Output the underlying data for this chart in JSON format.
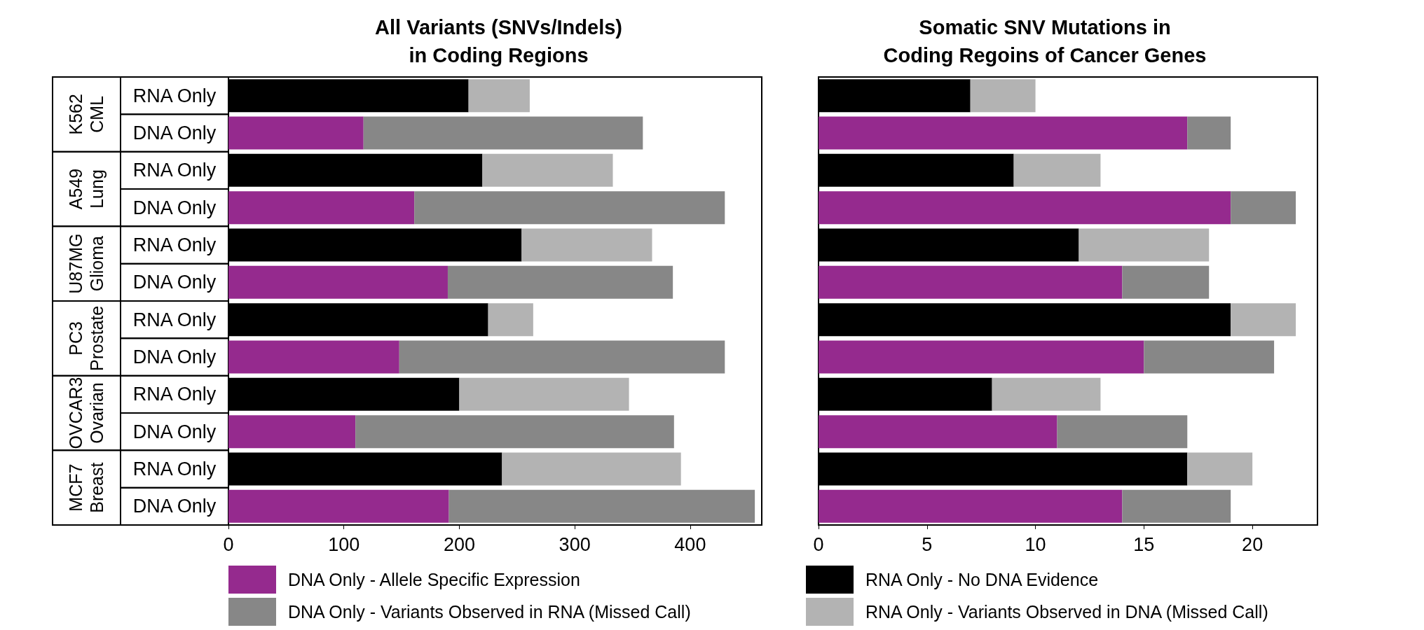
{
  "chart_data": [
    {
      "type": "bar",
      "title": "All Variants (SNVs/Indels)\nin Coding Regions",
      "orientation": "horizontal",
      "stacked": true,
      "categories": [
        "RNA Only",
        "DNA Only",
        "RNA Only",
        "DNA Only",
        "RNA Only",
        "DNA Only",
        "RNA Only",
        "DNA Only",
        "RNA Only",
        "DNA Only",
        "RNA Only",
        "DNA Only"
      ],
      "annotations": [
        "K562\nCML",
        "A549\nLung",
        "U87MG\nGlioma",
        "PC3\nProstate",
        "OVCAR3\nOvarian",
        "MCF7\nBreast"
      ],
      "series": [
        {
          "name": "DNA Only - Allele Specific Expression",
          "color": "#952a8e",
          "values": [
            null,
            117,
            null,
            161,
            null,
            190,
            null,
            148,
            null,
            110,
            null,
            191
          ]
        },
        {
          "name": "DNA Only - Variants Observed in RNA (Missed Call)",
          "color": "#878787",
          "values": [
            null,
            242,
            null,
            269,
            null,
            195,
            null,
            282,
            null,
            276,
            null,
            265
          ]
        },
        {
          "color": "#000000",
          "values": [
            208,
            null,
            220,
            null,
            254,
            null,
            225,
            null,
            200,
            null,
            237,
            null
          ]
        },
        {
          "color": "#b3b3b3",
          "values": [
            53,
            null,
            113,
            null,
            113,
            null,
            39,
            null,
            147,
            null,
            155,
            null
          ]
        }
      ],
      "xlim": [
        0,
        462
      ],
      "xticks": [
        0,
        100,
        200,
        300,
        400
      ],
      "grid": false,
      "legend": "bottom"
    },
    {
      "type": "bar",
      "title": "Somatic SNV Mutations in\nCoding Regoins of Cancer Genes",
      "orientation": "horizontal",
      "stacked": true,
      "categories": [
        null,
        null,
        null,
        null,
        null,
        null,
        null,
        null,
        null,
        null,
        null,
        null
      ],
      "series": [
        {
          "color": "#952a8e",
          "values": [
            null,
            17,
            null,
            19,
            null,
            14,
            null,
            15,
            null,
            11,
            null,
            14
          ]
        },
        {
          "color": "#878787",
          "values": [
            null,
            2,
            null,
            3,
            null,
            4,
            null,
            6,
            null,
            6,
            null,
            5
          ]
        },
        {
          "name": "RNA Only - No DNA Evidence",
          "color": "#000000",
          "values": [
            7,
            null,
            9,
            null,
            12,
            null,
            19,
            null,
            8,
            null,
            17,
            null
          ]
        },
        {
          "name": "RNA Only - Variants Observed in DNA (Missed Call)",
          "color": "#b3b3b3",
          "values": [
            3,
            null,
            4,
            null,
            6,
            null,
            3,
            null,
            5,
            null,
            3,
            null
          ]
        }
      ],
      "xlim": [
        0,
        23
      ],
      "xticks": [
        0,
        5,
        10,
        15,
        20
      ],
      "grid": false,
      "legend": "bottom"
    }
  ]
}
